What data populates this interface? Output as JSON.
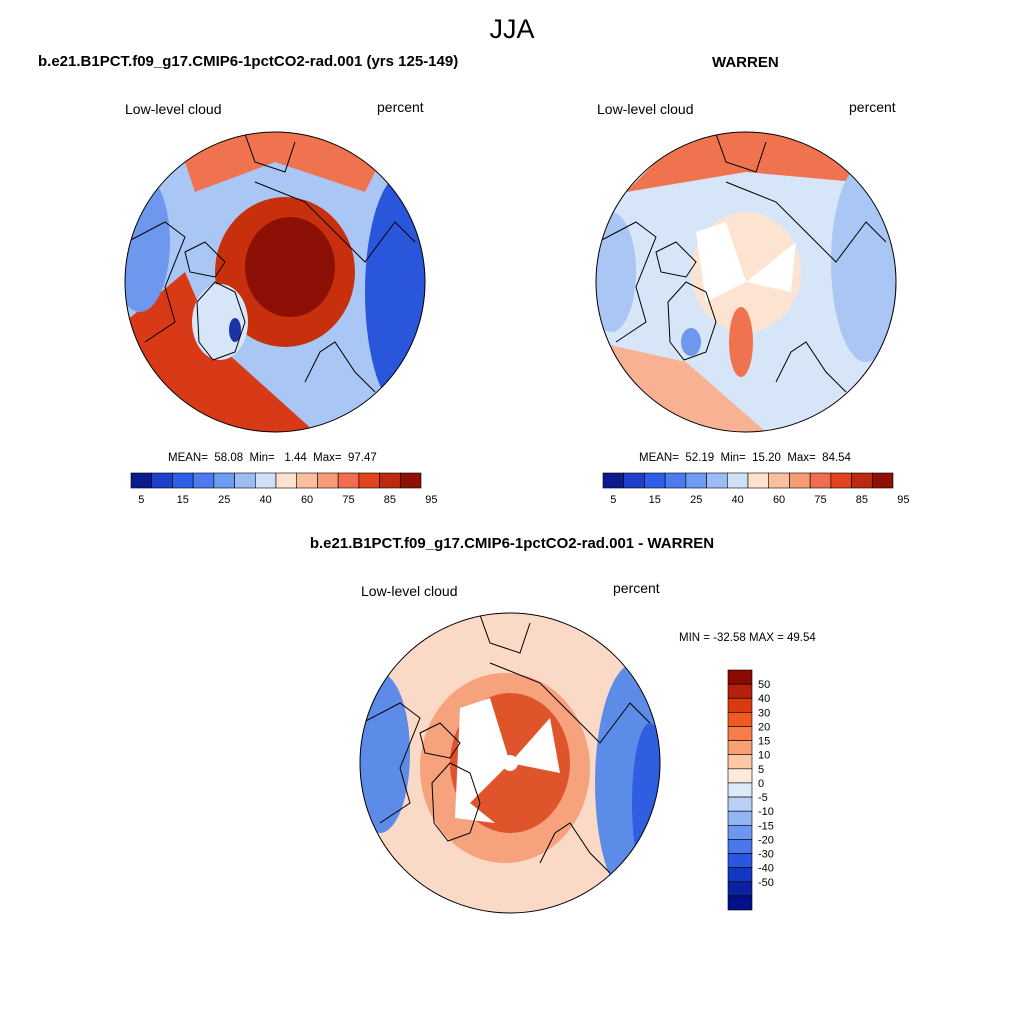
{
  "figure": {
    "season": "JJA"
  },
  "panels": [
    {
      "title": "b.e21.B1PCT.f09_g17.CMIP6-1pctCO2-rad.001 (yrs 125-149)",
      "variable": "Low-level cloud",
      "units": "percent",
      "stats": {
        "mean": "58.08",
        "min": "1.44",
        "max": "97.47"
      }
    },
    {
      "title": "WARREN",
      "variable": "Low-level cloud",
      "units": "percent",
      "stats": {
        "mean": "52.19",
        "min": "15.20",
        "max": "84.54"
      }
    },
    {
      "title": "b.e21.B1PCT.f09_g17.CMIP6-1pctCO2-rad.001 - WARREN",
      "variable": "Low-level cloud",
      "units": "percent",
      "stats_text": "MIN = -32.58 MAX =  49.54"
    }
  ],
  "stat_labels": {
    "mean": "MEAN=",
    "min": "Min=",
    "max": "Max="
  },
  "abs_colorbar": {
    "colors": [
      "#0a1b8c",
      "#1e3fc8",
      "#2f5ee6",
      "#4a7cf0",
      "#6f9bf2",
      "#9dbcf5",
      "#cfe0f7",
      "#fde2cf",
      "#fbbf9f",
      "#f79a78",
      "#f06e4d",
      "#e0421f",
      "#bc2a0f",
      "#8c1005"
    ],
    "labels": [
      "5",
      "15",
      "25",
      "40",
      "60",
      "75",
      "85",
      "95"
    ]
  },
  "diff_colorbar": {
    "colors": [
      "#8c0a05",
      "#b3210c",
      "#d93a12",
      "#f05a22",
      "#f67d4a",
      "#f9a073",
      "#fcc7a6",
      "#feeadd",
      "#dce9f8",
      "#b8d1f5",
      "#93b5f2",
      "#6d97ef",
      "#4878ec",
      "#2a55e0",
      "#1538c2",
      "#0a21a0",
      "#050f88"
    ],
    "labels": [
      "50",
      "40",
      "30",
      "20",
      "15",
      "10",
      "5",
      "0",
      "-5",
      "-10",
      "-15",
      "-20",
      "-30",
      "-40",
      "-50"
    ]
  },
  "diff_fill_colors": {
    "high": "#e0542b",
    "mid": "#f6a27c",
    "low": "#fbd9c7",
    "neg": "#5d8ce8",
    "neg2": "#2f5fe0"
  },
  "map_colors": {
    "red_dark": "#8c1005",
    "red": "#d83a17",
    "orange": "#f0734f",
    "salmon": "#f9b193",
    "cream": "#fde4d2",
    "pale_blue": "#d6e5f8",
    "light_blue": "#a9c6f4",
    "blue": "#6e98ee",
    "deep_blue": "#2a56dc",
    "navy": "#1a33a8"
  }
}
